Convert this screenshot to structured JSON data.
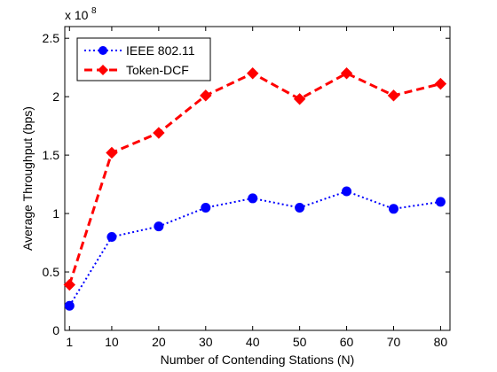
{
  "chart_data": {
    "type": "line",
    "xlabel": "Number of Contending Stations (N)",
    "ylabel": "Average Throughput (bps)",
    "y_exponent_label": "x 10",
    "y_exponent_power": "8",
    "x": [
      1,
      10,
      20,
      30,
      40,
      50,
      60,
      70,
      80
    ],
    "xlim": [
      0,
      82
    ],
    "ylim": [
      0,
      2.6
    ],
    "y_scale_note": "values in units of 10^8 bps",
    "x_ticks": [
      1,
      10,
      20,
      30,
      40,
      50,
      60,
      70,
      80
    ],
    "x_tick_labels": [
      "1",
      "10",
      "20",
      "30",
      "40",
      "50",
      "60",
      "70",
      "80"
    ],
    "y_ticks": [
      0,
      0.5,
      1,
      1.5,
      2,
      2.5
    ],
    "y_tick_labels": [
      "0",
      "0.5",
      "1",
      "1.5",
      "2",
      "2.5"
    ],
    "grid": false,
    "legend_position": "top-left",
    "series": [
      {
        "name": "IEEE 802.11",
        "values": [
          0.21,
          0.8,
          0.89,
          1.05,
          1.13,
          1.05,
          1.19,
          1.04,
          1.1
        ],
        "color": "#0000ff",
        "line_style": "dotted",
        "marker": "circle"
      },
      {
        "name": "Token-DCF",
        "values": [
          0.39,
          1.52,
          1.69,
          2.01,
          2.2,
          1.98,
          2.2,
          2.01,
          2.11
        ],
        "color": "#ff0000",
        "line_style": "dashed",
        "marker": "diamond"
      }
    ]
  }
}
